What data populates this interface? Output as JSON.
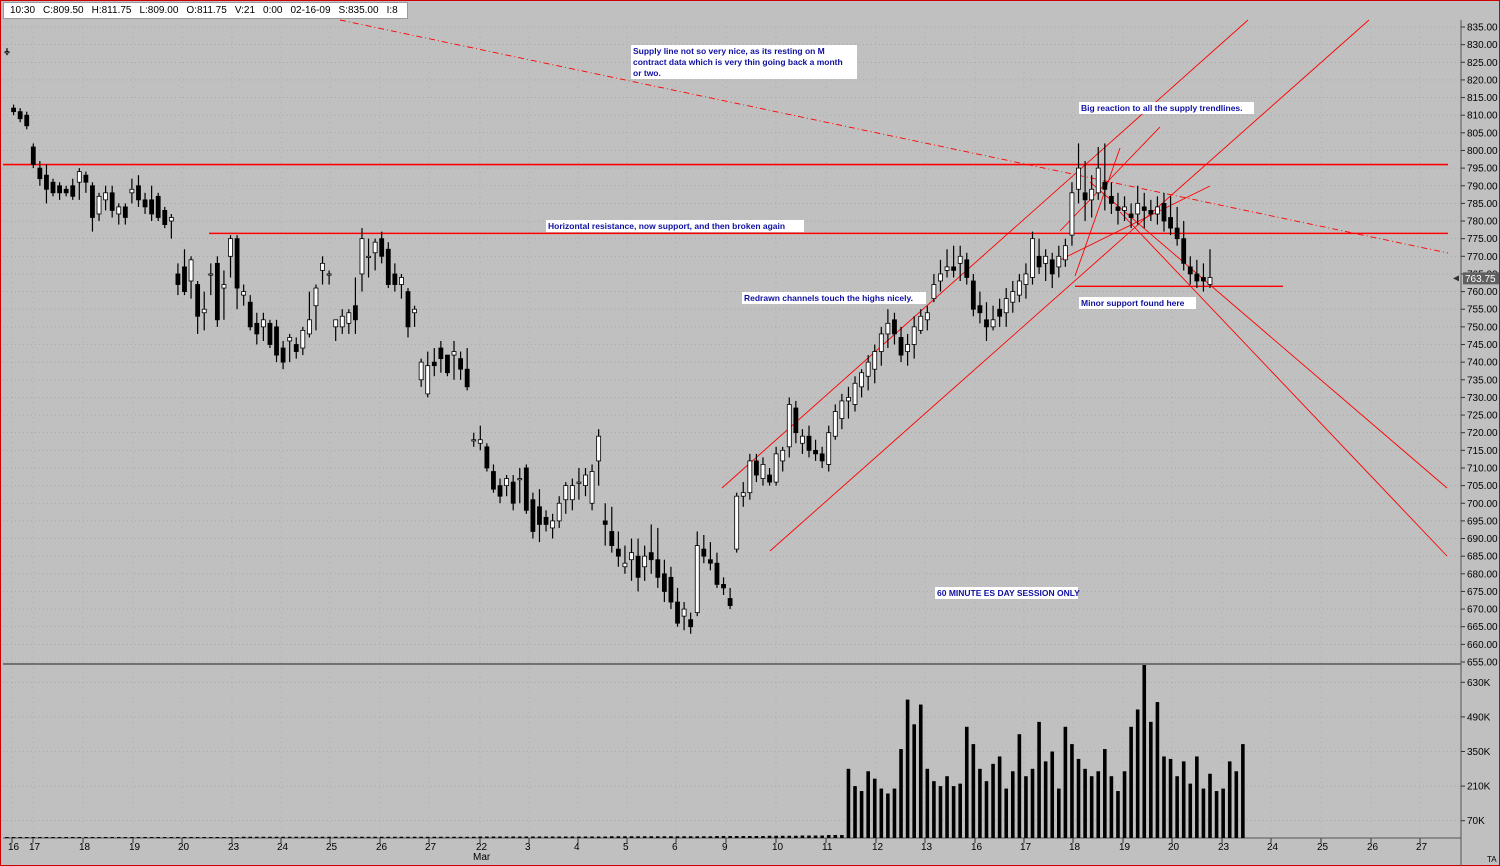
{
  "quote_bar": {
    "time": "10:30",
    "close": "C:809.50",
    "high": "H:811.75",
    "low": "L:809.00",
    "open": "O:811.75",
    "volume": "V:21",
    "tick": "0:00",
    "date": "02-16-09",
    "scale": "S:835.00",
    "interval": "I:8"
  },
  "chart_data": {
    "type": "candlestick",
    "title": "60 MINUTE ES DAY SESSION ONLY",
    "price_axis": {
      "ylim": [
        655,
        835
      ],
      "ticks": [
        "835.00",
        "830.00",
        "825.00",
        "820.00",
        "815.00",
        "810.00",
        "805.00",
        "800.00",
        "795.00",
        "790.00",
        "785.00",
        "780.00",
        "775.00",
        "770.00",
        "765.00",
        "760.00",
        "755.00",
        "750.00",
        "745.00",
        "740.00",
        "735.00",
        "730.00",
        "725.00",
        "720.00",
        "715.00",
        "710.00",
        "705.00",
        "700.00",
        "695.00",
        "690.00",
        "685.00",
        "680.00",
        "675.00",
        "670.00",
        "665.00",
        "660.00",
        "655.00"
      ],
      "current_price_label": "763.75",
      "current_price": 763.75
    },
    "volume_axis": {
      "ticks": [
        "630K",
        "490K",
        "350K",
        "210K",
        "70K"
      ],
      "tick_values": [
        630,
        490,
        350,
        210,
        70
      ],
      "ylim": [
        0,
        700
      ]
    },
    "x_axis": {
      "labels": [
        "16",
        "17",
        "18",
        "19",
        "20",
        "23",
        "24",
        "25",
        "26",
        "27",
        "22",
        "3",
        "4",
        "5",
        "6",
        "9",
        "10",
        "11",
        "12",
        "13",
        "16",
        "17",
        "18",
        "19",
        "20",
        "23",
        "24",
        "25",
        "26",
        "27"
      ],
      "month_label": "Mar",
      "month_label_index": 10
    },
    "candles": [
      [
        828,
        829,
        827,
        828
      ],
      [
        812,
        813,
        810,
        811
      ],
      [
        811,
        812,
        808,
        809
      ],
      [
        810,
        811,
        806,
        807
      ],
      [
        801,
        802,
        795,
        796
      ],
      [
        795,
        797,
        790,
        792
      ],
      [
        793,
        796,
        785,
        789
      ],
      [
        791,
        792,
        787,
        788
      ],
      [
        790,
        791,
        786,
        788
      ],
      [
        789,
        790,
        787,
        788
      ],
      [
        790,
        792,
        786,
        787
      ],
      [
        791,
        795,
        786,
        794
      ],
      [
        793,
        794,
        788,
        791
      ],
      [
        790,
        791,
        777,
        781
      ],
      [
        782,
        788,
        780,
        787
      ],
      [
        786,
        790,
        783,
        788
      ],
      [
        788,
        790,
        781,
        783
      ],
      [
        782,
        785,
        779,
        784
      ],
      [
        784,
        785,
        779,
        781
      ],
      [
        788,
        792,
        785,
        789
      ],
      [
        790,
        793,
        784,
        786
      ],
      [
        786,
        788,
        782,
        784
      ],
      [
        786,
        790,
        780,
        782
      ],
      [
        787,
        788,
        780,
        781
      ],
      [
        783,
        784,
        778,
        779
      ],
      [
        780,
        782,
        775,
        781
      ],
      [
        765,
        768,
        759,
        762
      ],
      [
        767,
        772,
        759,
        760
      ],
      [
        763,
        770,
        758,
        769
      ],
      [
        762,
        763,
        748,
        753
      ],
      [
        754,
        760,
        749,
        755
      ],
      [
        765,
        768,
        759,
        765
      ],
      [
        768,
        770,
        750,
        752
      ],
      [
        761,
        766,
        752,
        762
      ],
      [
        770,
        776,
        764,
        775
      ],
      [
        775,
        776,
        755,
        761
      ],
      [
        759,
        762,
        756,
        760
      ],
      [
        757,
        759,
        749,
        750
      ],
      [
        751,
        754,
        745,
        748
      ],
      [
        750,
        754,
        746,
        752
      ],
      [
        751,
        752,
        744,
        745
      ],
      [
        750,
        752,
        740,
        742
      ],
      [
        744,
        746,
        738,
        740
      ],
      [
        746,
        748,
        740,
        747
      ],
      [
        745,
        747,
        741,
        743
      ],
      [
        744,
        750,
        742,
        749
      ],
      [
        748,
        760,
        747,
        752
      ],
      [
        756,
        762,
        749,
        761
      ],
      [
        766,
        770,
        762,
        768
      ],
      [
        765,
        766,
        762,
        765
      ],
      [
        750,
        752,
        746,
        752
      ],
      [
        750,
        755,
        748,
        753
      ],
      [
        751,
        755,
        748,
        754
      ],
      [
        756,
        764,
        748,
        752
      ],
      [
        765,
        778,
        760,
        775
      ],
      [
        770,
        775,
        764,
        770
      ],
      [
        771,
        775,
        766,
        774
      ],
      [
        775,
        777,
        768,
        770
      ],
      [
        772,
        774,
        761,
        762
      ],
      [
        765,
        768,
        760,
        762
      ],
      [
        762,
        765,
        758,
        764
      ],
      [
        760,
        761,
        747,
        750
      ],
      [
        754,
        756,
        750,
        755
      ],
      [
        735,
        741,
        733,
        740
      ],
      [
        731,
        743,
        730,
        739
      ],
      [
        740,
        744,
        736,
        739
      ],
      [
        744,
        746,
        737,
        741
      ],
      [
        742,
        742,
        736,
        737
      ],
      [
        742,
        746,
        735,
        743
      ],
      [
        741,
        743,
        735,
        738
      ],
      [
        738,
        744,
        732,
        733
      ],
      [
        718,
        720,
        716,
        718
      ],
      [
        717,
        722,
        715,
        718
      ],
      [
        716,
        717,
        709,
        710
      ],
      [
        709,
        711,
        703,
        704
      ],
      [
        705,
        707,
        700,
        702
      ],
      [
        705,
        708,
        702,
        707
      ],
      [
        706,
        708,
        698,
        700
      ],
      [
        707,
        710,
        700,
        707
      ],
      [
        710,
        711,
        697,
        698
      ],
      [
        701,
        703,
        690,
        692
      ],
      [
        699,
        704,
        689,
        694
      ],
      [
        696,
        698,
        692,
        694
      ],
      [
        693,
        697,
        690,
        695
      ],
      [
        695,
        702,
        693,
        700
      ],
      [
        701,
        706,
        697,
        705
      ],
      [
        701,
        707,
        698,
        705
      ],
      [
        706,
        710,
        701,
        706
      ],
      [
        705,
        710,
        702,
        708
      ],
      [
        700,
        711,
        698,
        709
      ],
      [
        712,
        721,
        705,
        719
      ],
      [
        695,
        700,
        688,
        694
      ],
      [
        692,
        699,
        686,
        688
      ],
      [
        687,
        692,
        682,
        685
      ],
      [
        682,
        688,
        680,
        683
      ],
      [
        684,
        690,
        678,
        686
      ],
      [
        685,
        690,
        675,
        679
      ],
      [
        682,
        688,
        678,
        685
      ],
      [
        686,
        694,
        680,
        684
      ],
      [
        684,
        693,
        676,
        679
      ],
      [
        680,
        684,
        672,
        675
      ],
      [
        679,
        682,
        670,
        672
      ],
      [
        672,
        676,
        665,
        666
      ],
      [
        668,
        672,
        664,
        670
      ],
      [
        667,
        669,
        663,
        665
      ],
      [
        669,
        692,
        668,
        688
      ],
      [
        687,
        691,
        683,
        685
      ],
      [
        684,
        689,
        681,
        683
      ],
      [
        683,
        686,
        676,
        677
      ],
      [
        677,
        679,
        674,
        676
      ],
      [
        673,
        676,
        670,
        671
      ],
      [
        687,
        703,
        686,
        702
      ],
      [
        702,
        706,
        699,
        703
      ],
      [
        703,
        714,
        701,
        712
      ],
      [
        712,
        714,
        706,
        708
      ],
      [
        707,
        713,
        705,
        711
      ],
      [
        708,
        710,
        705,
        706
      ],
      [
        706,
        716,
        705,
        714
      ],
      [
        712,
        716,
        709,
        715
      ],
      [
        716,
        730,
        713,
        728
      ],
      [
        727,
        729,
        717,
        720
      ],
      [
        717,
        721,
        714,
        719
      ],
      [
        719,
        722,
        713,
        715
      ],
      [
        715,
        718,
        712,
        714
      ],
      [
        714,
        716,
        710,
        712
      ],
      [
        711,
        722,
        709,
        720
      ],
      [
        719,
        728,
        718,
        726
      ],
      [
        724,
        731,
        721,
        729
      ],
      [
        729,
        733,
        724,
        730
      ],
      [
        728,
        736,
        726,
        734
      ],
      [
        733,
        738,
        730,
        737
      ],
      [
        736,
        742,
        732,
        740
      ],
      [
        738,
        745,
        734,
        743
      ],
      [
        743,
        750,
        739,
        748
      ],
      [
        748,
        755,
        744,
        751
      ],
      [
        752,
        754,
        745,
        748
      ],
      [
        747,
        750,
        740,
        742
      ],
      [
        743,
        748,
        739,
        745
      ],
      [
        745,
        753,
        741,
        750
      ],
      [
        749,
        755,
        748,
        753
      ],
      [
        752,
        756,
        749,
        754
      ],
      [
        758,
        765,
        757,
        762
      ],
      [
        763,
        769,
        760,
        765
      ],
      [
        766,
        772,
        764,
        767
      ],
      [
        767,
        773,
        764,
        766
      ],
      [
        768,
        773,
        763,
        770
      ],
      [
        769,
        771,
        762,
        764
      ],
      [
        763,
        765,
        753,
        755
      ],
      [
        756,
        760,
        751,
        754
      ],
      [
        752,
        757,
        746,
        750
      ],
      [
        750,
        756,
        749,
        752
      ],
      [
        755,
        758,
        750,
        753
      ],
      [
        754,
        761,
        750,
        758
      ],
      [
        757,
        763,
        754,
        760
      ],
      [
        759,
        765,
        757,
        763
      ],
      [
        762,
        768,
        758,
        765
      ],
      [
        764,
        777,
        762,
        775
      ],
      [
        770,
        775,
        765,
        767
      ],
      [
        768,
        772,
        763,
        770
      ],
      [
        769,
        771,
        761,
        765
      ],
      [
        767,
        773,
        764,
        770
      ],
      [
        769,
        775,
        767,
        773
      ],
      [
        776,
        791,
        773,
        788
      ],
      [
        789,
        802,
        785,
        795
      ],
      [
        788,
        797,
        780,
        786
      ],
      [
        786,
        793,
        781,
        789
      ],
      [
        788,
        801,
        786,
        795
      ],
      [
        791,
        802,
        783,
        789
      ],
      [
        787,
        791,
        782,
        785
      ],
      [
        784,
        788,
        779,
        783
      ],
      [
        783,
        787,
        780,
        784
      ],
      [
        782,
        785,
        778,
        781
      ],
      [
        782,
        790,
        779,
        785
      ],
      [
        784,
        788,
        778,
        783
      ],
      [
        783,
        786,
        780,
        782
      ],
      [
        782,
        787,
        779,
        784
      ],
      [
        785,
        788,
        777,
        780
      ],
      [
        781,
        787,
        776,
        778
      ],
      [
        778,
        784,
        773,
        775
      ],
      [
        775,
        780,
        766,
        768
      ],
      [
        767,
        770,
        762,
        765
      ],
      [
        765,
        769,
        761,
        763
      ],
      [
        764,
        768,
        760,
        763
      ],
      [
        762,
        772,
        761,
        764
      ]
    ],
    "volume": [
      4,
      4,
      4,
      4,
      4,
      4,
      4,
      4,
      4,
      4,
      4,
      4,
      4,
      4,
      4,
      4,
      4,
      4,
      4,
      4,
      4,
      4,
      4,
      4,
      4,
      4,
      4,
      4,
      4,
      4,
      4,
      4,
      4,
      4,
      4,
      4,
      5,
      5,
      5,
      5,
      5,
      5,
      5,
      5,
      5,
      5,
      5,
      5,
      5,
      5,
      5,
      5,
      5,
      5,
      5,
      5,
      5,
      5,
      5,
      5,
      5,
      5,
      5,
      5,
      5,
      5,
      5,
      5,
      5,
      5,
      5,
      5,
      6,
      6,
      6,
      6,
      6,
      6,
      6,
      6,
      6,
      6,
      6,
      6,
      6,
      6,
      6,
      6,
      6,
      6,
      6,
      6,
      7,
      7,
      7,
      7,
      7,
      7,
      7,
      7,
      7,
      7,
      7,
      7,
      7,
      7,
      7,
      7,
      8,
      8,
      8,
      8,
      8,
      8,
      8,
      8,
      9,
      9,
      9,
      9,
      9,
      10,
      10,
      10,
      10,
      12,
      12,
      12,
      280,
      210,
      190,
      270,
      240,
      200,
      180,
      200,
      360,
      560,
      460,
      540,
      280,
      230,
      210,
      250,
      210,
      220,
      450,
      380,
      280,
      230,
      300,
      330,
      200,
      270,
      420,
      250,
      280,
      470,
      310,
      350,
      200,
      450,
      380,
      320,
      280,
      250,
      270,
      360,
      250,
      190,
      270,
      450,
      520,
      700,
      470,
      550,
      330,
      320,
      250,
      310,
      220,
      330,
      200,
      260,
      190,
      200,
      310,
      270,
      380
    ],
    "horizontal_lines": [
      {
        "price": 796,
        "role": "resistance"
      },
      {
        "price": 776.5,
        "role": "horizontal resistance/support"
      },
      {
        "price": 761.5,
        "role": "minor support"
      }
    ],
    "annotations": [
      "Supply line not so very nice, as its resting on M contract data which is very thin going back a month or two.",
      "Big reaction to all the supply trendlines.",
      "Horizontal resistance, now support, and then broken again",
      "Redrawn channels touch the highs nicely.",
      "Minor support found here",
      "60 MINUTE ES DAY SESSION ONLY"
    ],
    "grid": true,
    "legend": "none",
    "corner_label": "TA"
  },
  "colors": {
    "background": "#c0c0c0",
    "trendline": "#ff0000",
    "candle_up": "#ffffff",
    "candle_down": "#000000",
    "annotation_text": "#1010a0",
    "grid": "#9c9c9c"
  }
}
